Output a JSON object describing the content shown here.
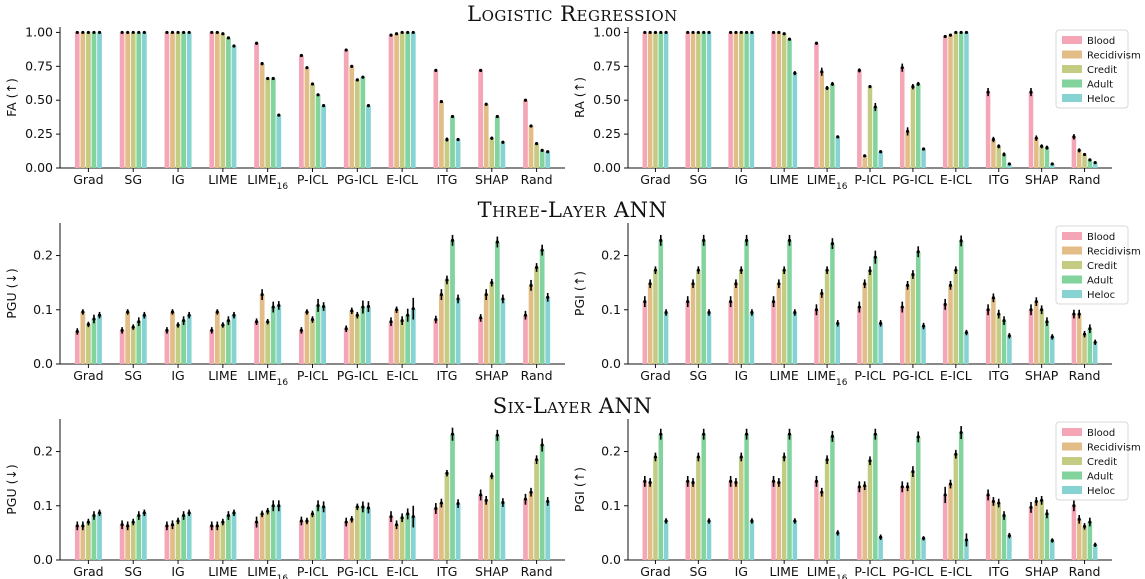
{
  "row_titles": [
    "Logistic Regression",
    "Three-Layer ANN",
    "Six-Layer ANN"
  ],
  "colors": {
    "Blood": "#f4a6b7",
    "Recidivism": "#e3bd87",
    "Credit": "#c4cc84",
    "Adult": "#83d39f",
    "Heloc": "#87d2d2"
  },
  "chart_data": [
    {
      "type": "bar",
      "ylabel": "FA (↑)",
      "categories": [
        "Grad",
        "SG",
        "IG",
        "LIME",
        "LIME16",
        "P-ICL",
        "PG-ICL",
        "E-ICL",
        "ITG",
        "SHAP",
        "Rand"
      ],
      "yticks": [
        "0.00",
        "0.25",
        "0.50",
        "0.75",
        "1.00"
      ],
      "ylim": [
        0,
        1.04
      ],
      "legend": false,
      "series": [
        {
          "name": "Blood",
          "values": [
            1.0,
            1.0,
            1.0,
            1.0,
            0.92,
            0.83,
            0.87,
            0.98,
            0.72,
            0.72,
            0.5
          ],
          "err": [
            0.006,
            0.006,
            0.006,
            0.006,
            0.01,
            0.01,
            0.01,
            0.006,
            0.01,
            0.01,
            0.01
          ]
        },
        {
          "name": "Recidivism",
          "values": [
            1.0,
            1.0,
            1.0,
            1.0,
            0.77,
            0.74,
            0.75,
            0.99,
            0.49,
            0.47,
            0.31
          ],
          "err": [
            0.006,
            0.006,
            0.006,
            0.006,
            0.012,
            0.01,
            0.01,
            0.006,
            0.01,
            0.01,
            0.01
          ]
        },
        {
          "name": "Credit",
          "values": [
            1.0,
            1.0,
            1.0,
            0.99,
            0.66,
            0.62,
            0.65,
            1.0,
            0.21,
            0.22,
            0.18
          ],
          "err": [
            0.006,
            0.006,
            0.006,
            0.006,
            0.01,
            0.01,
            0.01,
            0.006,
            0.015,
            0.012,
            0.01
          ]
        },
        {
          "name": "Adult",
          "values": [
            1.0,
            1.0,
            1.0,
            0.96,
            0.66,
            0.54,
            0.67,
            1.0,
            0.38,
            0.38,
            0.13
          ],
          "err": [
            0.006,
            0.006,
            0.006,
            0.006,
            0.01,
            0.01,
            0.01,
            0.006,
            0.01,
            0.01,
            0.008
          ]
        },
        {
          "name": "Heloc",
          "values": [
            1.0,
            1.0,
            1.0,
            0.9,
            0.39,
            0.46,
            0.46,
            1.0,
            0.21,
            0.19,
            0.12
          ],
          "err": [
            0.006,
            0.006,
            0.006,
            0.008,
            0.01,
            0.01,
            0.01,
            0.006,
            0.01,
            0.01,
            0.008
          ]
        }
      ]
    },
    {
      "type": "bar",
      "ylabel": "RA (↑)",
      "categories": [
        "Grad",
        "SG",
        "IG",
        "LIME",
        "LIME16",
        "P-ICL",
        "PG-ICL",
        "E-ICL",
        "ITG",
        "SHAP",
        "Rand"
      ],
      "yticks": [
        "0.00",
        "0.25",
        "0.50",
        "0.75",
        "1.00"
      ],
      "ylim": [
        0,
        1.04
      ],
      "legend": true,
      "series": [
        {
          "name": "Blood",
          "values": [
            1.0,
            1.0,
            1.0,
            1.0,
            0.92,
            0.72,
            0.74,
            0.97,
            0.56,
            0.56,
            0.23
          ],
          "err": [
            0.006,
            0.006,
            0.006,
            0.006,
            0.01,
            0.015,
            0.03,
            0.01,
            0.03,
            0.03,
            0.02
          ]
        },
        {
          "name": "Recidivism",
          "values": [
            1.0,
            1.0,
            1.0,
            1.0,
            0.71,
            0.09,
            0.27,
            0.98,
            0.21,
            0.22,
            0.13
          ],
          "err": [
            0.006,
            0.006,
            0.006,
            0.006,
            0.03,
            0.01,
            0.03,
            0.006,
            0.02,
            0.02,
            0.015
          ]
        },
        {
          "name": "Credit",
          "values": [
            1.0,
            1.0,
            1.0,
            0.99,
            0.59,
            0.6,
            0.6,
            1.0,
            0.16,
            0.16,
            0.1
          ],
          "err": [
            0.006,
            0.006,
            0.006,
            0.006,
            0.015,
            0.01,
            0.02,
            0.006,
            0.015,
            0.015,
            0.01
          ]
        },
        {
          "name": "Adult",
          "values": [
            1.0,
            1.0,
            1.0,
            0.95,
            0.62,
            0.45,
            0.62,
            1.0,
            0.1,
            0.15,
            0.06
          ],
          "err": [
            0.006,
            0.006,
            0.006,
            0.01,
            0.015,
            0.03,
            0.015,
            0.006,
            0.015,
            0.015,
            0.01
          ]
        },
        {
          "name": "Heloc",
          "values": [
            1.0,
            1.0,
            1.0,
            0.7,
            0.23,
            0.12,
            0.14,
            1.0,
            0.03,
            0.03,
            0.04
          ],
          "err": [
            0.006,
            0.006,
            0.006,
            0.015,
            0.01,
            0.01,
            0.01,
            0.006,
            0.01,
            0.01,
            0.008
          ]
        }
      ]
    },
    {
      "type": "bar",
      "ylabel": "PGU (↓)",
      "categories": [
        "Grad",
        "SG",
        "IG",
        "LIME",
        "LIME16",
        "P-ICL",
        "PG-ICL",
        "E-ICL",
        "ITG",
        "SHAP",
        "Rand"
      ],
      "yticks": [
        "0.0",
        "0.1",
        "0.2"
      ],
      "ylim": [
        0,
        0.26
      ],
      "legend": false,
      "series": [
        {
          "name": "Blood",
          "values": [
            0.06,
            0.062,
            0.062,
            0.062,
            0.078,
            0.062,
            0.065,
            0.078,
            0.082,
            0.085,
            0.09
          ],
          "err": [
            0.006,
            0.006,
            0.006,
            0.006,
            0.006,
            0.006,
            0.006,
            0.008,
            0.007,
            0.007,
            0.008
          ]
        },
        {
          "name": "Recidivism",
          "values": [
            0.096,
            0.096,
            0.096,
            0.096,
            0.128,
            0.096,
            0.098,
            0.1,
            0.128,
            0.128,
            0.145
          ],
          "err": [
            0.005,
            0.005,
            0.005,
            0.005,
            0.01,
            0.005,
            0.006,
            0.006,
            0.01,
            0.01,
            0.01
          ]
        },
        {
          "name": "Credit",
          "values": [
            0.073,
            0.068,
            0.072,
            0.072,
            0.078,
            0.082,
            0.09,
            0.08,
            0.155,
            0.15,
            0.178
          ],
          "err": [
            0.005,
            0.005,
            0.005,
            0.005,
            0.005,
            0.006,
            0.006,
            0.008,
            0.008,
            0.007,
            0.008
          ]
        },
        {
          "name": "Adult",
          "values": [
            0.083,
            0.078,
            0.08,
            0.08,
            0.105,
            0.108,
            0.105,
            0.09,
            0.228,
            0.225,
            0.21
          ],
          "err": [
            0.008,
            0.008,
            0.008,
            0.008,
            0.01,
            0.012,
            0.012,
            0.012,
            0.01,
            0.01,
            0.01
          ]
        },
        {
          "name": "Heloc",
          "values": [
            0.09,
            0.09,
            0.09,
            0.09,
            0.108,
            0.106,
            0.106,
            0.102,
            0.12,
            0.12,
            0.123
          ],
          "err": [
            0.006,
            0.006,
            0.006,
            0.006,
            0.008,
            0.008,
            0.01,
            0.02,
            0.008,
            0.008,
            0.008
          ]
        }
      ]
    },
    {
      "type": "bar",
      "ylabel": "PGI (↑)",
      "categories": [
        "Grad",
        "SG",
        "IG",
        "LIME",
        "LIME16",
        "P-ICL",
        "PG-ICL",
        "E-ICL",
        "ITG",
        "SHAP",
        "Rand"
      ],
      "yticks": [
        "0.0",
        "0.1",
        "0.2"
      ],
      "ylim": [
        0,
        0.26
      ],
      "legend": true,
      "series": [
        {
          "name": "Blood",
          "values": [
            0.115,
            0.115,
            0.115,
            0.115,
            0.1,
            0.105,
            0.105,
            0.11,
            0.1,
            0.1,
            0.092
          ],
          "err": [
            0.01,
            0.01,
            0.01,
            0.01,
            0.01,
            0.01,
            0.01,
            0.01,
            0.01,
            0.01,
            0.008
          ]
        },
        {
          "name": "Recidivism",
          "values": [
            0.148,
            0.148,
            0.148,
            0.148,
            0.13,
            0.148,
            0.145,
            0.145,
            0.122,
            0.115,
            0.092
          ],
          "err": [
            0.008,
            0.008,
            0.008,
            0.008,
            0.008,
            0.008,
            0.008,
            0.008,
            0.008,
            0.008,
            0.008
          ]
        },
        {
          "name": "Credit",
          "values": [
            0.173,
            0.173,
            0.173,
            0.173,
            0.173,
            0.172,
            0.165,
            0.173,
            0.092,
            0.1,
            0.055
          ],
          "err": [
            0.007,
            0.007,
            0.007,
            0.007,
            0.007,
            0.008,
            0.008,
            0.007,
            0.008,
            0.008,
            0.006
          ]
        },
        {
          "name": "Adult",
          "values": [
            0.228,
            0.228,
            0.228,
            0.228,
            0.222,
            0.197,
            0.207,
            0.227,
            0.08,
            0.078,
            0.065
          ],
          "err": [
            0.01,
            0.01,
            0.01,
            0.01,
            0.01,
            0.012,
            0.01,
            0.01,
            0.008,
            0.008,
            0.008
          ]
        },
        {
          "name": "Heloc",
          "values": [
            0.095,
            0.095,
            0.095,
            0.095,
            0.075,
            0.075,
            0.07,
            0.058,
            0.052,
            0.05,
            0.04
          ],
          "err": [
            0.006,
            0.006,
            0.006,
            0.006,
            0.006,
            0.006,
            0.006,
            0.005,
            0.005,
            0.005,
            0.005
          ]
        }
      ]
    },
    {
      "type": "bar",
      "ylabel": "PGU (↓)",
      "categories": [
        "Grad",
        "SG",
        "IG",
        "LIME",
        "LIME16",
        "P-ICL",
        "PG-ICL",
        "E-ICL",
        "ITG",
        "SHAP",
        "Rand"
      ],
      "yticks": [
        "0.0",
        "0.1",
        "0.2"
      ],
      "ylim": [
        0,
        0.26
      ],
      "legend": false,
      "series": [
        {
          "name": "Blood",
          "values": [
            0.063,
            0.065,
            0.063,
            0.063,
            0.07,
            0.072,
            0.07,
            0.08,
            0.095,
            0.12,
            0.112
          ],
          "err": [
            0.008,
            0.008,
            0.008,
            0.008,
            0.01,
            0.008,
            0.008,
            0.01,
            0.01,
            0.01,
            0.01
          ]
        },
        {
          "name": "Recidivism",
          "values": [
            0.063,
            0.063,
            0.065,
            0.063,
            0.085,
            0.072,
            0.075,
            0.065,
            0.105,
            0.11,
            0.125
          ],
          "err": [
            0.008,
            0.008,
            0.008,
            0.008,
            0.006,
            0.006,
            0.006,
            0.008,
            0.008,
            0.008,
            0.008
          ]
        },
        {
          "name": "Credit",
          "values": [
            0.07,
            0.07,
            0.072,
            0.07,
            0.09,
            0.085,
            0.098,
            0.078,
            0.16,
            0.155,
            0.185
          ],
          "err": [
            0.006,
            0.006,
            0.006,
            0.006,
            0.006,
            0.006,
            0.006,
            0.008,
            0.006,
            0.006,
            0.008
          ]
        },
        {
          "name": "Adult",
          "values": [
            0.082,
            0.082,
            0.082,
            0.082,
            0.1,
            0.1,
            0.098,
            0.085,
            0.232,
            0.23,
            0.212
          ],
          "err": [
            0.008,
            0.008,
            0.008,
            0.008,
            0.01,
            0.01,
            0.01,
            0.01,
            0.012,
            0.01,
            0.012
          ]
        },
        {
          "name": "Heloc",
          "values": [
            0.087,
            0.087,
            0.087,
            0.087,
            0.1,
            0.098,
            0.096,
            0.08,
            0.104,
            0.106,
            0.108
          ],
          "err": [
            0.006,
            0.006,
            0.006,
            0.006,
            0.01,
            0.01,
            0.01,
            0.02,
            0.008,
            0.008,
            0.008
          ]
        }
      ]
    },
    {
      "type": "bar",
      "ylabel": "PGI (↑)",
      "categories": [
        "Grad",
        "SG",
        "IG",
        "LIME",
        "LIME16",
        "P-ICL",
        "PG-ICL",
        "E-ICL",
        "ITG",
        "SHAP",
        "Rand"
      ],
      "yticks": [
        "0.0",
        "0.1",
        "0.2"
      ],
      "ylim": [
        0,
        0.26
      ],
      "legend": true,
      "series": [
        {
          "name": "Blood",
          "values": [
            0.145,
            0.145,
            0.145,
            0.145,
            0.145,
            0.135,
            0.135,
            0.12,
            0.12,
            0.097,
            0.1
          ],
          "err": [
            0.01,
            0.01,
            0.01,
            0.01,
            0.01,
            0.01,
            0.01,
            0.015,
            0.01,
            0.01,
            0.01
          ]
        },
        {
          "name": "Recidivism",
          "values": [
            0.143,
            0.143,
            0.143,
            0.143,
            0.125,
            0.137,
            0.135,
            0.14,
            0.108,
            0.108,
            0.075
          ],
          "err": [
            0.008,
            0.008,
            0.008,
            0.008,
            0.008,
            0.008,
            0.008,
            0.008,
            0.008,
            0.008,
            0.008
          ]
        },
        {
          "name": "Credit",
          "values": [
            0.19,
            0.19,
            0.19,
            0.19,
            0.185,
            0.183,
            0.163,
            0.195,
            0.105,
            0.11,
            0.062
          ],
          "err": [
            0.008,
            0.008,
            0.008,
            0.008,
            0.008,
            0.008,
            0.01,
            0.008,
            0.008,
            0.008,
            0.006
          ]
        },
        {
          "name": "Adult",
          "values": [
            0.232,
            0.232,
            0.232,
            0.232,
            0.228,
            0.232,
            0.227,
            0.235,
            0.082,
            0.085,
            0.07
          ],
          "err": [
            0.01,
            0.01,
            0.01,
            0.01,
            0.01,
            0.01,
            0.01,
            0.012,
            0.008,
            0.008,
            0.008
          ]
        },
        {
          "name": "Heloc",
          "values": [
            0.072,
            0.072,
            0.072,
            0.072,
            0.05,
            0.042,
            0.04,
            0.037,
            0.045,
            0.036,
            0.028
          ],
          "err": [
            0.005,
            0.005,
            0.005,
            0.005,
            0.005,
            0.005,
            0.004,
            0.012,
            0.005,
            0.004,
            0.004
          ]
        }
      ]
    }
  ]
}
